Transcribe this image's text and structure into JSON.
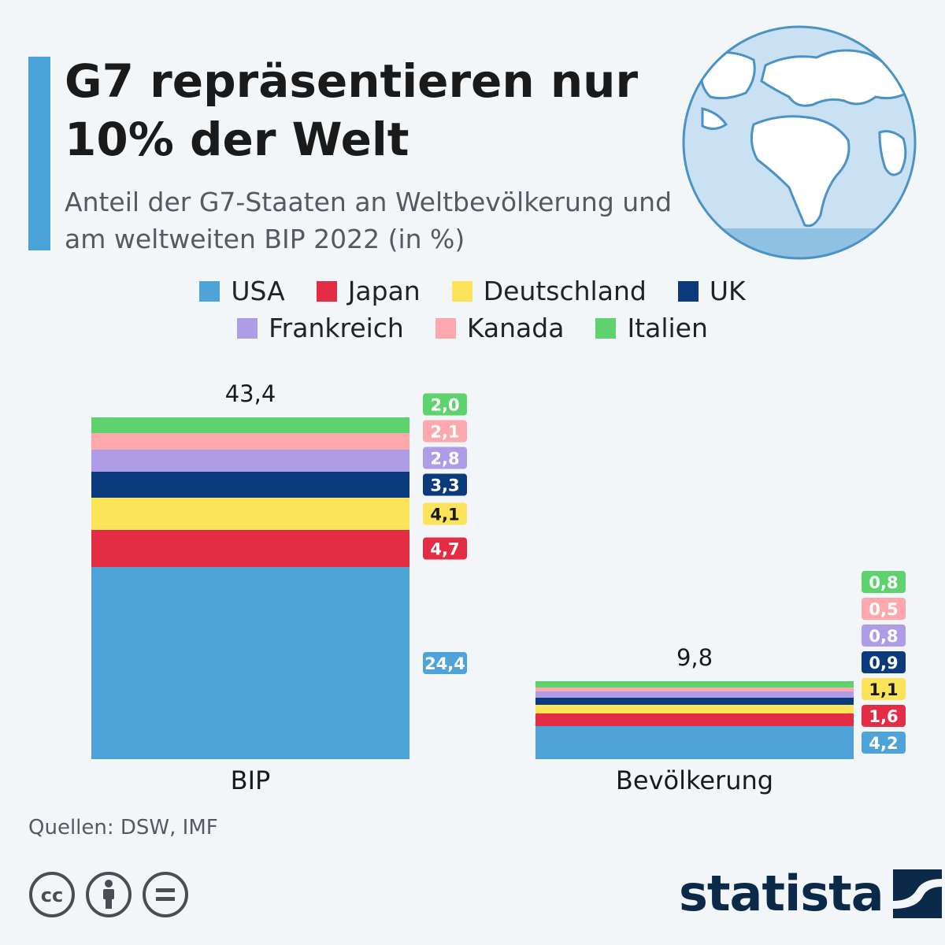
{
  "header": {
    "title": "G7 repräsentieren nur 10% der Welt",
    "subtitle": "Anteil der G7-Staaten an Weltbevölkerung und am weltweiten BIP 2022 (in %)"
  },
  "legend": {
    "row1": [
      {
        "label": "USA",
        "color": "#4ea3d9"
      },
      {
        "label": "Japan",
        "color": "#e22d45"
      },
      {
        "label": "Deutschland",
        "color": "#fbe45a"
      },
      {
        "label": "UK",
        "color": "#0b3b7d"
      }
    ],
    "row2": [
      {
        "label": "Frankreich",
        "color": "#ae9de6"
      },
      {
        "label": "Kanada",
        "color": "#fca8ad"
      },
      {
        "label": "Italien",
        "color": "#5ed26c"
      }
    ]
  },
  "chart_data": {
    "type": "bar",
    "stacked": true,
    "categories": [
      "BIP",
      "Bevölkerung"
    ],
    "totals": [
      "43,4",
      "9,8"
    ],
    "series": [
      {
        "name": "USA",
        "color": "#4ea3d9",
        "text_color": "#ffffff",
        "values": [
          24.4,
          4.2
        ],
        "labels": [
          "24,4",
          "4,2"
        ]
      },
      {
        "name": "Japan",
        "color": "#e22d45",
        "text_color": "#ffffff",
        "values": [
          4.7,
          1.6
        ],
        "labels": [
          "4,7",
          "1,6"
        ]
      },
      {
        "name": "Deutschland",
        "color": "#fbe45a",
        "text_color": "#1a1a1a",
        "values": [
          4.1,
          1.1
        ],
        "labels": [
          "4,1",
          "1,1"
        ]
      },
      {
        "name": "UK",
        "color": "#0b3b7d",
        "text_color": "#ffffff",
        "values": [
          3.3,
          0.9
        ],
        "labels": [
          "3,3",
          "0,9"
        ]
      },
      {
        "name": "Frankreich",
        "color": "#ae9de6",
        "text_color": "#ffffff",
        "values": [
          2.8,
          0.8
        ],
        "labels": [
          "2,8",
          "0,8"
        ]
      },
      {
        "name": "Kanada",
        "color": "#fca8ad",
        "text_color": "#ffffff",
        "values": [
          2.1,
          0.5
        ],
        "labels": [
          "2,1",
          "0,5"
        ]
      },
      {
        "name": "Italien",
        "color": "#5ed26c",
        "text_color": "#ffffff",
        "values": [
          2.0,
          0.8
        ],
        "labels": [
          "2,0",
          "0,8"
        ]
      }
    ]
  },
  "footer": {
    "source": "Quellen: DSW, IMF",
    "logo": "statista",
    "cc_icons": [
      "cc-icon",
      "attribution-icon",
      "no-derivatives-icon"
    ]
  }
}
